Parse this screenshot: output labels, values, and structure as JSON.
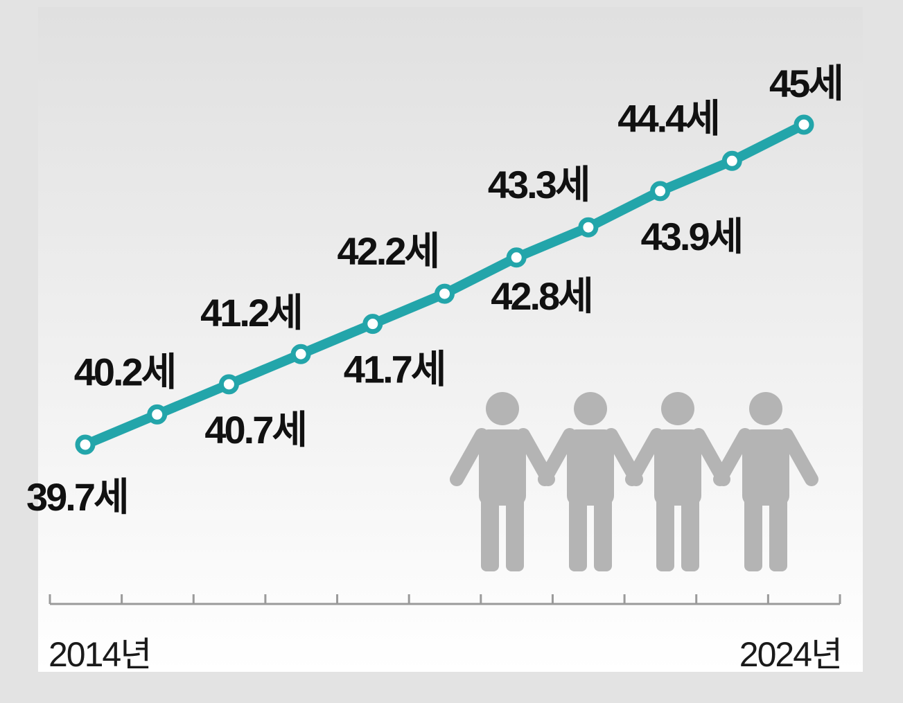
{
  "chart_data": {
    "type": "line",
    "title": "",
    "xlabel": "",
    "ylabel": "",
    "x": [
      2014,
      2015,
      2016,
      2017,
      2018,
      2019,
      2020,
      2021,
      2022,
      2023,
      2024
    ],
    "values": [
      39.7,
      40.2,
      40.7,
      41.2,
      41.7,
      42.2,
      42.8,
      43.3,
      43.9,
      44.4,
      45
    ],
    "data_labels": [
      "39.7세",
      "40.2세",
      "40.7세",
      "41.2세",
      "41.7세",
      "42.2세",
      "42.8세",
      "43.3세",
      "43.9세",
      "44.4세",
      "45세"
    ],
    "x_tick_labels": {
      "first": "2014년",
      "last": "2024년"
    },
    "ylim": [
      38.5,
      45.5
    ],
    "grid": false,
    "legend": "none",
    "line_color": "#23a5aa",
    "marker_fill": "#ffffff",
    "axis_color": "#9a9a9a",
    "illustration": "four-people-holding-hands-icon",
    "illustration_color": "#b4b4b4"
  }
}
